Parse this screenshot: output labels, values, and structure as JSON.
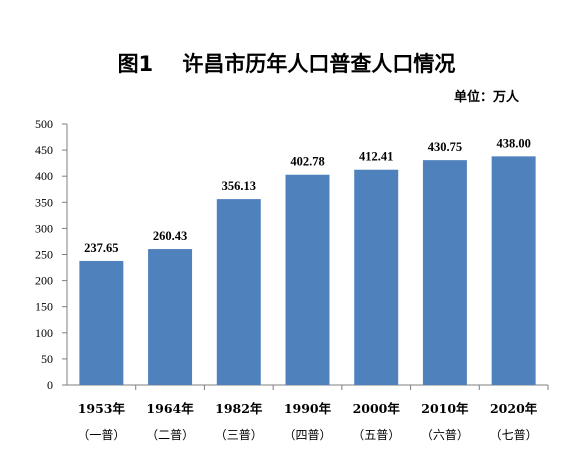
{
  "chart_data": {
    "type": "bar",
    "title": "图1    许昌市历年人口普查人口情况",
    "unit": "单位：万人",
    "categories": [
      "1953年",
      "1964年",
      "1982年",
      "1990年",
      "2000年",
      "2010年",
      "2020年"
    ],
    "subcategories": [
      "（一普）",
      "（二普）",
      "（三普）",
      "（四普）",
      "（五普）",
      "（六普）",
      "（七普）"
    ],
    "values": [
      237.65,
      260.43,
      356.13,
      402.78,
      412.41,
      430.75,
      438.0
    ],
    "value_labels": [
      "237.65",
      "260.43",
      "356.13",
      "402.78",
      "412.41",
      "430.75",
      "438.00"
    ],
    "ylim": [
      0,
      500
    ],
    "yticks": [
      0,
      50,
      100,
      150,
      200,
      250,
      300,
      350,
      400,
      450,
      500
    ],
    "bar_color": "#4F81BD",
    "grid": false,
    "legend": "none"
  }
}
